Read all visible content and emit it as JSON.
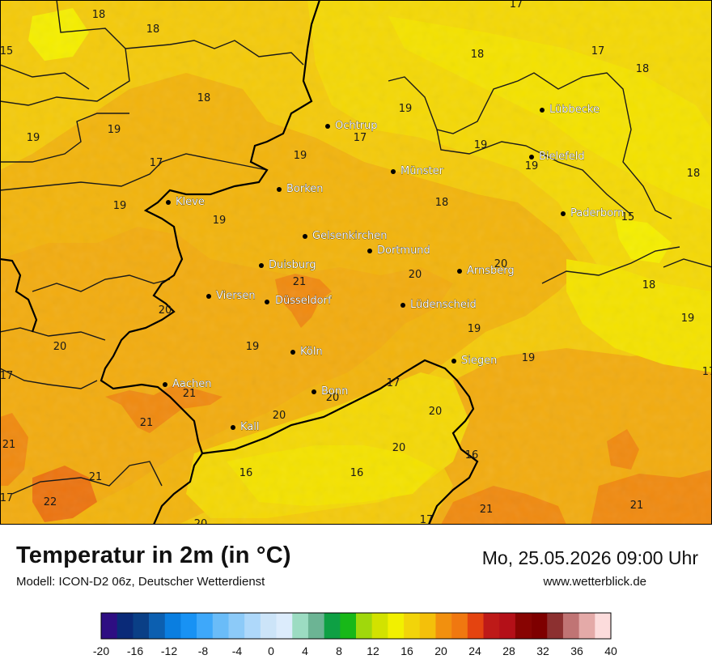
{
  "header": {
    "title": "Temperatur in 2m (in °C)",
    "model": "Modell: ICON-D2 06z, Deutscher Wetterdienst",
    "datetime": "Mo, 25.05.2026 09:00 Uhr",
    "website": "www.wetterblick.de"
  },
  "colors": {
    "t15": "#f5ee00",
    "t16": "#f4e200",
    "t17": "#f4d806",
    "t18": "#f4ca0b",
    "t19": "#f2b40d",
    "t20": "#f2ac10",
    "t21": "#f08a10",
    "t22": "#ec7410",
    "border": "#000000"
  },
  "cities": [
    {
      "name": "Lübbecke"
    },
    {
      "name": "Ochtrup"
    },
    {
      "name": "Bielefeld"
    },
    {
      "name": "Münster"
    },
    {
      "name": "Borken"
    },
    {
      "name": "Kleve"
    },
    {
      "name": "Paderborn"
    },
    {
      "name": "Gelsenkirchen"
    },
    {
      "name": "Dortmund"
    },
    {
      "name": "Duisburg"
    },
    {
      "name": "Arnsberg"
    },
    {
      "name": "Viersen"
    },
    {
      "name": "Düsseldorf"
    },
    {
      "name": "Lüdenscheid"
    },
    {
      "name": "Köln"
    },
    {
      "name": "Siegen"
    },
    {
      "name": "Aachen"
    },
    {
      "name": "Bonn"
    },
    {
      "name": "Kall"
    }
  ],
  "temperature_labels": [
    "18",
    "17",
    "18",
    "15",
    "17",
    "18",
    "19",
    "18",
    "19",
    "19",
    "17",
    "19",
    "17",
    "19",
    "18",
    "19",
    "18",
    "15",
    "18",
    "19",
    "19",
    "20",
    "20",
    "21",
    "20",
    "18",
    "20",
    "19",
    "19",
    "17",
    "19",
    "19",
    "21",
    "20",
    "17",
    "20",
    "21",
    "21",
    "20",
    "20",
    "16",
    "16",
    "16",
    "21",
    "22",
    "17",
    "17",
    "21",
    "21",
    "20",
    "17"
  ],
  "legend": {
    "ticks": [
      "-20",
      "-16",
      "-12",
      "-8",
      "-4",
      "0",
      "4",
      "8",
      "12",
      "16",
      "20",
      "24",
      "28",
      "32",
      "36",
      "40"
    ],
    "colors": [
      "#2e0e82",
      "#0a2a78",
      "#0a3f86",
      "#0c5fb0",
      "#0a7ee0",
      "#1892f4",
      "#3ea8fa",
      "#6abcf8",
      "#8ccaf8",
      "#aed8fa",
      "#cce4f8",
      "#dcecfc",
      "#9cdcc2",
      "#6cb494",
      "#0ea044",
      "#18b818",
      "#a0d80c",
      "#d2e200",
      "#f2f000",
      "#f2d40a",
      "#f4c00a",
      "#f2900e",
      "#f07810",
      "#e44410",
      "#be1a18",
      "#b41018",
      "#880402",
      "#7e0000",
      "#8c3030",
      "#c07474",
      "#e4aaa8",
      "#fcdcdc"
    ]
  }
}
